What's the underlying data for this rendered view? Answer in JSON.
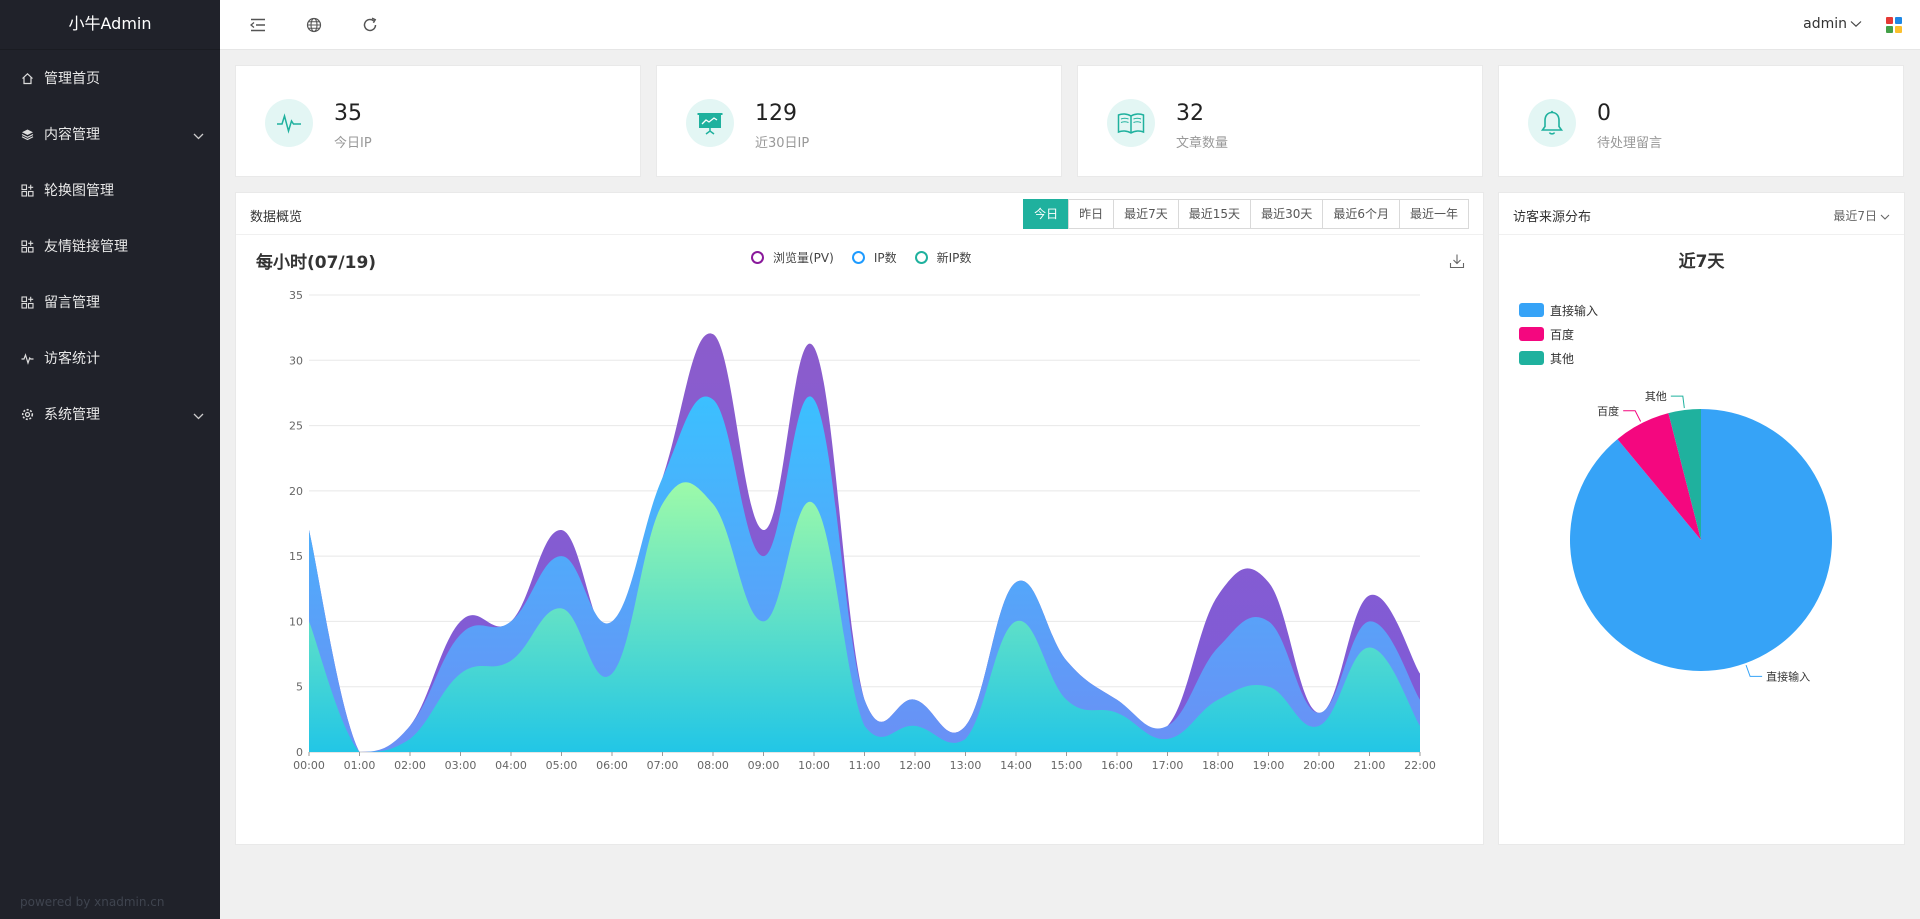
{
  "app": {
    "title": "小牛Admin",
    "powered": "powered by xnadmin.cn"
  },
  "sidebar": {
    "items": [
      {
        "label": "管理首页",
        "icon": "home-icon"
      },
      {
        "label": "内容管理",
        "icon": "layers-icon",
        "expandable": true
      },
      {
        "label": "轮换图管理",
        "icon": "apps-icon"
      },
      {
        "label": "友情链接管理",
        "icon": "apps-icon"
      },
      {
        "label": "留言管理",
        "icon": "apps-icon"
      },
      {
        "label": "访客统计",
        "icon": "pulse-icon"
      },
      {
        "label": "系统管理",
        "icon": "gear-icon",
        "expandable": true
      }
    ]
  },
  "header": {
    "icons": [
      "menu-shrink-icon",
      "globe-icon",
      "refresh-icon"
    ],
    "user": "admin",
    "tile_colors": [
      "#e53935",
      "#1e88e5",
      "#43a047",
      "#fbc02d"
    ]
  },
  "stats": [
    {
      "value": "35",
      "label": "今日IP",
      "icon": "pulse-icon"
    },
    {
      "value": "129",
      "label": "近30日IP",
      "icon": "presentation-icon"
    },
    {
      "value": "32",
      "label": "文章数量",
      "icon": "book-icon"
    },
    {
      "value": "0",
      "label": "待处理留言",
      "icon": "bell-icon"
    }
  ],
  "overview": {
    "title": "数据概览",
    "ranges": [
      "今日",
      "昨日",
      "最近7天",
      "最近15天",
      "最近30天",
      "最近6个月",
      "最近一年"
    ],
    "active_range": "今日"
  },
  "source_panel": {
    "title": "访客来源分布",
    "range": "最近7日"
  },
  "colors": {
    "accent": "#1fb19e",
    "sidebar": "#20222a"
  },
  "chart_data": [
    {
      "type": "area",
      "title": "每小时(07/19)",
      "stacked": false,
      "smooth": true,
      "categories": [
        "00:00",
        "01:00",
        "02:00",
        "03:00",
        "04:00",
        "05:00",
        "06:00",
        "07:00",
        "08:00",
        "09:00",
        "10:00",
        "11:00",
        "12:00",
        "13:00",
        "14:00",
        "15:00",
        "16:00",
        "17:00",
        "18:00",
        "19:00",
        "20:00",
        "21:00",
        "22:00"
      ],
      "series": [
        {
          "name": "浏览量(PV)",
          "legend_color": "#8a1a9b",
          "fill": [
            "#8b5ccc",
            "#7e5bd8"
          ],
          "values": [
            17,
            0,
            2,
            10,
            10,
            17,
            9,
            21,
            32,
            17,
            31,
            4,
            4,
            2,
            13,
            7,
            4,
            2,
            12,
            13,
            3,
            12,
            6
          ]
        },
        {
          "name": "IP数",
          "legend_color": "#1e9bff",
          "fill": [
            "#3bc0ff",
            "#6b8ff5"
          ],
          "values": [
            17,
            0,
            2,
            9,
            10,
            15,
            10,
            21,
            27,
            15,
            27,
            4,
            4,
            2,
            13,
            7,
            4,
            2,
            8,
            10,
            3,
            10,
            4
          ]
        },
        {
          "name": "新IP数",
          "legend_color": "#1fb19e",
          "fill": [
            "#9dfaa9",
            "#22c6e6"
          ],
          "values": [
            10,
            0,
            1,
            6,
            7,
            11,
            6,
            19,
            19,
            10,
            19,
            2,
            2,
            1,
            10,
            4,
            3,
            1,
            4,
            5,
            2,
            8,
            2
          ]
        }
      ],
      "ylim": [
        0,
        35
      ],
      "yticks": [
        0,
        5,
        10,
        15,
        20,
        25,
        30,
        35
      ],
      "grid": true,
      "legend": "top"
    },
    {
      "type": "pie",
      "title": "近7天",
      "labels": [
        "直接输入",
        "百度",
        "其他"
      ],
      "values": [
        89,
        7,
        4
      ],
      "colors": [
        "#36a3f7",
        "#f4077f",
        "#1fb19e"
      ],
      "legend": "left"
    }
  ]
}
